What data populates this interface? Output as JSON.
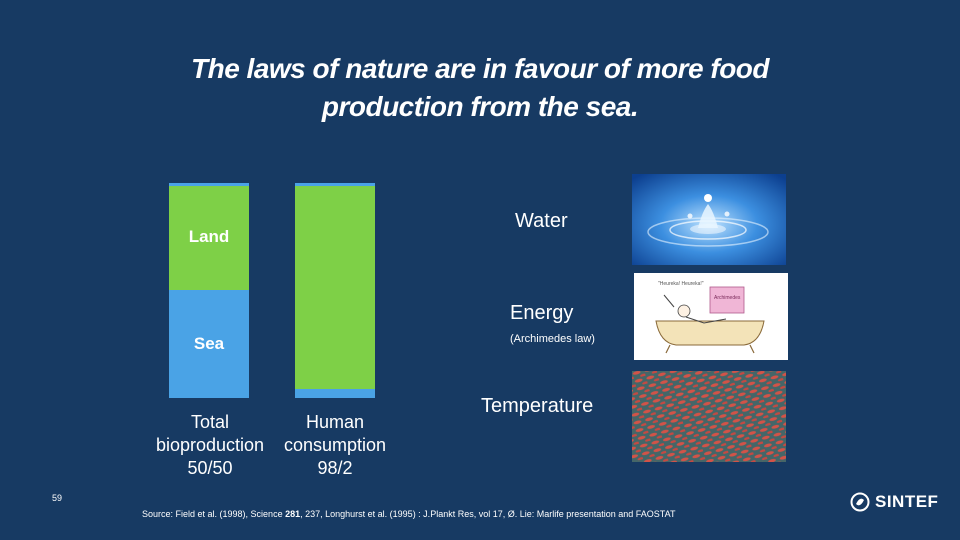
{
  "slide": {
    "title_line1": "The laws of nature are in favour of more food",
    "title_line2": "production from the sea",
    "title_punct": ".",
    "number": "59",
    "logo_text": "SINTEF",
    "source_prefix": "Source: Field et al. (1998), Science ",
    "source_bold": "281",
    "source_suffix": ", 237, Longhurst et al. (1995)  : J.Plankt Res, vol 17, Ø. Lie: Marlife presentation and FAOSTAT"
  },
  "chart_data": {
    "type": "bar",
    "stacked": true,
    "categories": [
      "Total bioproduction 50/50",
      "Human consumption 98/2"
    ],
    "category_lines": [
      [
        "Total",
        "bioproduction",
        "50/50"
      ],
      [
        "Human",
        "consumption",
        "98/2"
      ]
    ],
    "series": [
      {
        "name": "Sea",
        "values": [
          50,
          2
        ],
        "color": "#4aa3e6"
      },
      {
        "name": "Land",
        "values": [
          50,
          98
        ],
        "color": "#7ed047"
      }
    ],
    "segment_labels": {
      "sea": "Sea",
      "land": "Land"
    },
    "ylim": [
      0,
      100
    ]
  },
  "factors": {
    "water": "Water",
    "energy": "Energy",
    "energy_note": "(Archimedes law)",
    "temperature": "Temperature"
  },
  "images": {
    "energy_caption": "\"Heureka! Heureka!\"",
    "energy_sign": "Archimedes"
  },
  "colors": {
    "background": "#173a63",
    "land": "#7ed047",
    "sea": "#4aa3e6"
  }
}
